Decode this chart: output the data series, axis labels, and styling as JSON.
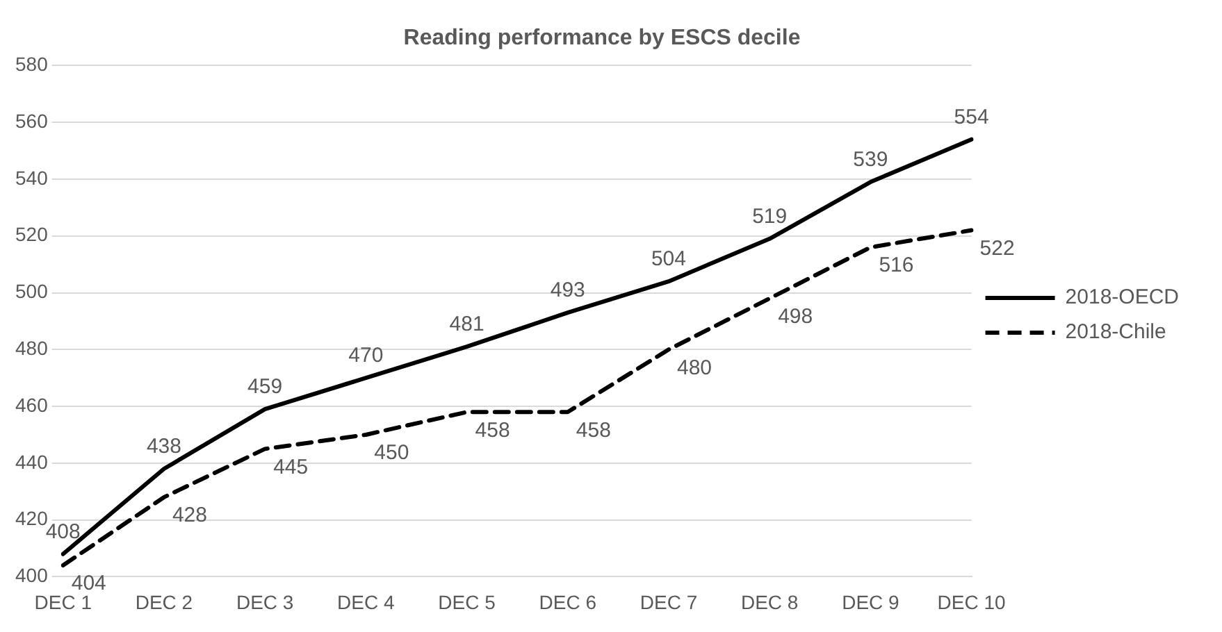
{
  "chart_data": {
    "type": "line",
    "title": "Reading performance by ESCS decile",
    "categories": [
      "DEC 1",
      "DEC 2",
      "DEC 3",
      "DEC 4",
      "DEC 5",
      "DEC 6",
      "DEC 7",
      "DEC 8",
      "DEC 9",
      "DEC 10"
    ],
    "series": [
      {
        "name": "2018-OECD",
        "color": "#000000",
        "line_style": "solid",
        "values": [
          408,
          438,
          459,
          470,
          481,
          493,
          504,
          519,
          539,
          554
        ]
      },
      {
        "name": "2018-Chile",
        "color": "#000000",
        "line_style": "dashed",
        "values": [
          404,
          428,
          445,
          450,
          458,
          458,
          480,
          498,
          516,
          522
        ]
      }
    ],
    "ylim": [
      400,
      580
    ],
    "yticks": [
      400,
      420,
      440,
      460,
      480,
      500,
      520,
      540,
      560,
      580
    ],
    "grid": "y",
    "legend": "right",
    "marker": "none",
    "data_labels": true
  }
}
